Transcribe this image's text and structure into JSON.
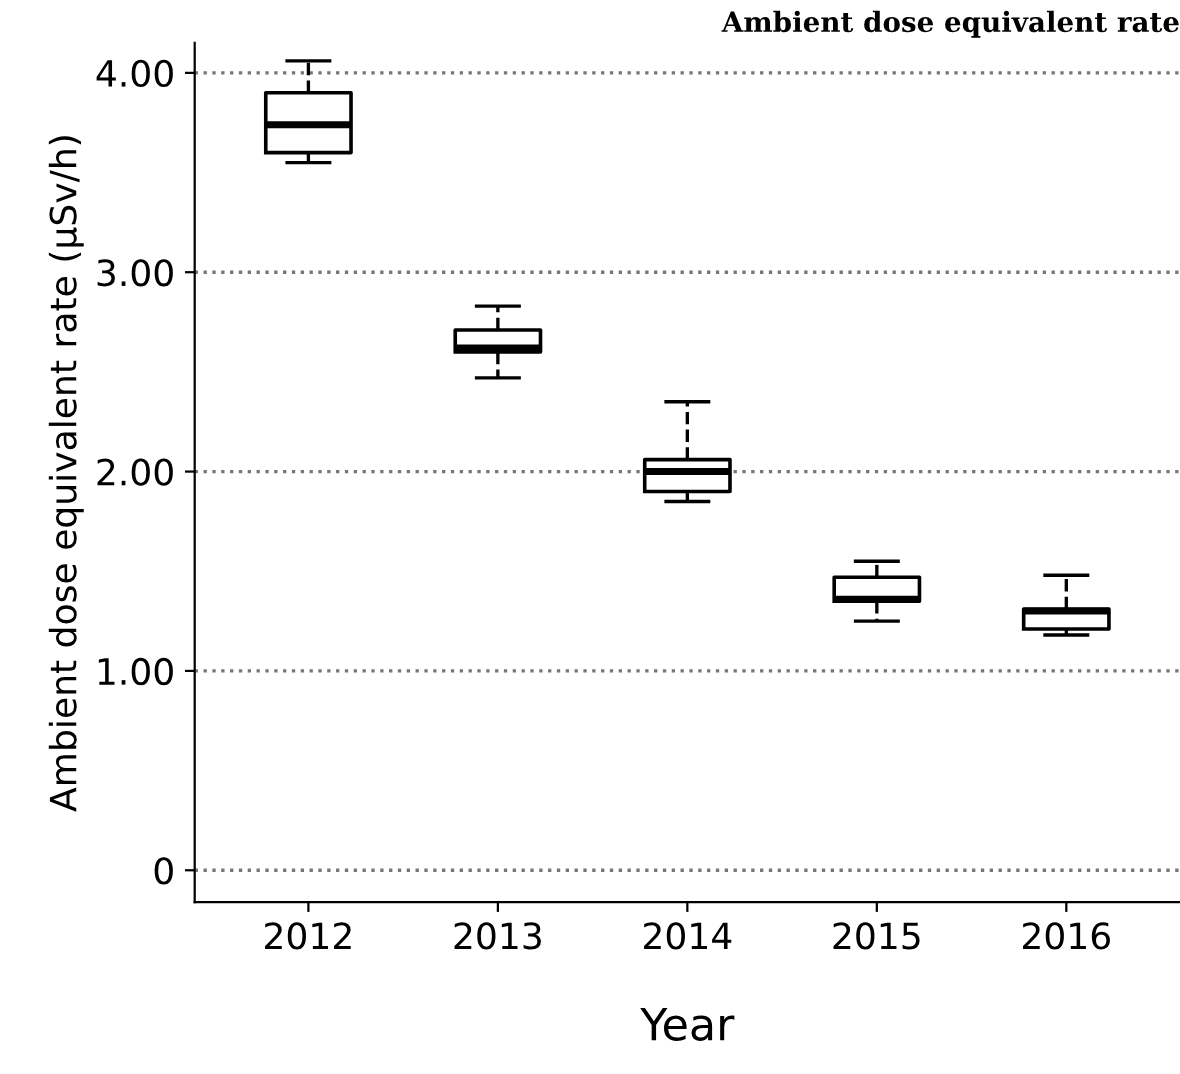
{
  "chart_data": {
    "type": "box",
    "title": "Ambient dose equivalent rate",
    "xlabel": "Year",
    "ylabel": "Ambient dose equivalent rate (µSv/h)",
    "categories": [
      "2012",
      "2013",
      "2014",
      "2015",
      "2016"
    ],
    "boxes": [
      {
        "low": 3.55,
        "q1": 3.6,
        "median": 3.74,
        "q3": 3.9,
        "high": 4.06
      },
      {
        "low": 2.47,
        "q1": 2.6,
        "median": 2.62,
        "q3": 2.71,
        "high": 2.83
      },
      {
        "low": 1.85,
        "q1": 1.9,
        "median": 2.0,
        "q3": 2.06,
        "high": 2.35
      },
      {
        "low": 1.25,
        "q1": 1.35,
        "median": 1.36,
        "q3": 1.47,
        "high": 1.55
      },
      {
        "low": 1.18,
        "q1": 1.21,
        "median": 1.3,
        "q3": 1.31,
        "high": 1.48
      }
    ],
    "color": "#000000",
    "ylim": [
      -0.16,
      4.15
    ],
    "yticks": [
      {
        "value": 0,
        "label": "0"
      },
      {
        "value": 1,
        "label": "1.00"
      },
      {
        "value": 2,
        "label": "2.00"
      },
      {
        "value": 3,
        "label": "3.00"
      },
      {
        "value": 4,
        "label": "4.00"
      }
    ],
    "grid": "y",
    "line_style": "dashed"
  }
}
